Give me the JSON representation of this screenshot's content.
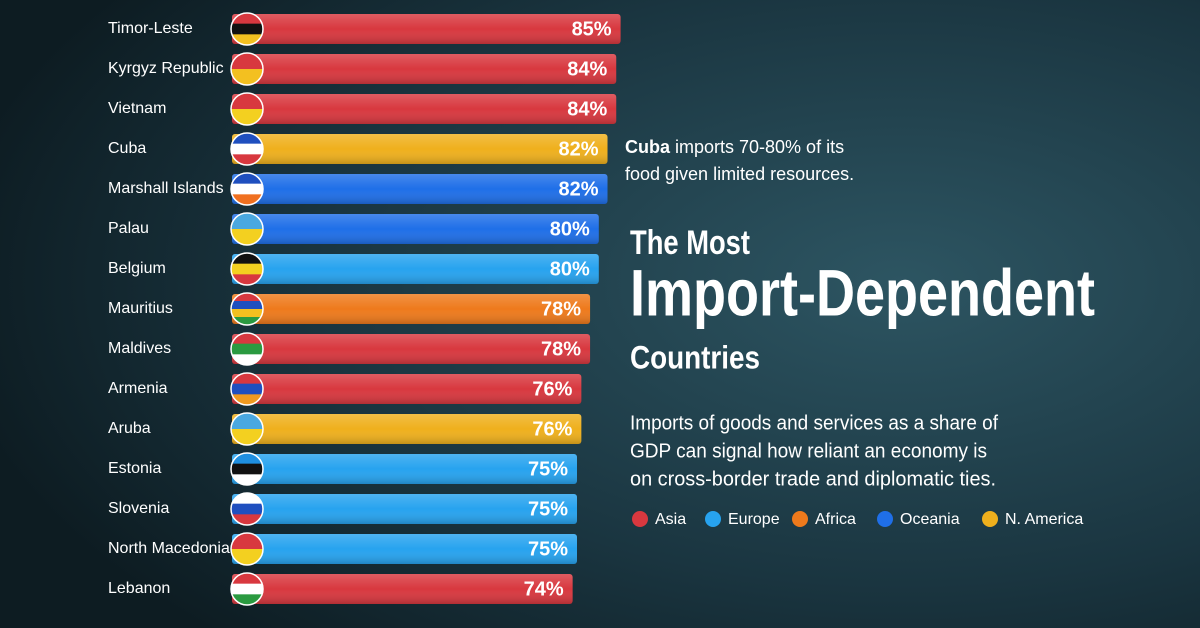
{
  "chart_data": {
    "type": "bar",
    "title_top": "The Most",
    "title": "Import-Dependent",
    "title_bottom": "Countries",
    "subtitle": [
      "Imports of goods and services as a share of",
      "GDP can signal how reliant an economy is",
      "on cross-border trade and diplomatic ties."
    ],
    "annotation": {
      "subject": "Cuba",
      "lines": [
        "imports 70-80% of its",
        "food given limited resources."
      ]
    },
    "categories": [
      "Timor-Leste",
      "Kyrgyz Republic",
      "Vietnam",
      "Cuba",
      "Marshall Islands",
      "Palau",
      "Belgium",
      "Mauritius",
      "Maldives",
      "Armenia",
      "Aruba",
      "Estonia",
      "Slovenia",
      "North Macedonia",
      "Lebanon"
    ],
    "values": [
      85,
      84,
      84,
      82,
      82,
      80,
      80,
      78,
      78,
      76,
      76,
      75,
      75,
      75,
      74
    ],
    "value_labels": [
      "85%",
      "84%",
      "84%",
      "82%",
      "82%",
      "80%",
      "80%",
      "78%",
      "78%",
      "76%",
      "76%",
      "75%",
      "75%",
      "75%",
      "74%"
    ],
    "bar_region": [
      "Asia",
      "Asia",
      "Asia",
      "N. America",
      "Oceania",
      "Oceania",
      "Europe",
      "Africa",
      "Asia",
      "Asia",
      "N. America",
      "Europe",
      "Europe",
      "Europe",
      "Asia"
    ],
    "regions": [
      {
        "name": "Asia",
        "color": "#d8383f"
      },
      {
        "name": "Europe",
        "color": "#27a3ef"
      },
      {
        "name": "Africa",
        "color": "#ee7a1c"
      },
      {
        "name": "Oceania",
        "color": "#1f6fe8"
      },
      {
        "name": "N. America",
        "color": "#efb01d"
      }
    ]
  }
}
